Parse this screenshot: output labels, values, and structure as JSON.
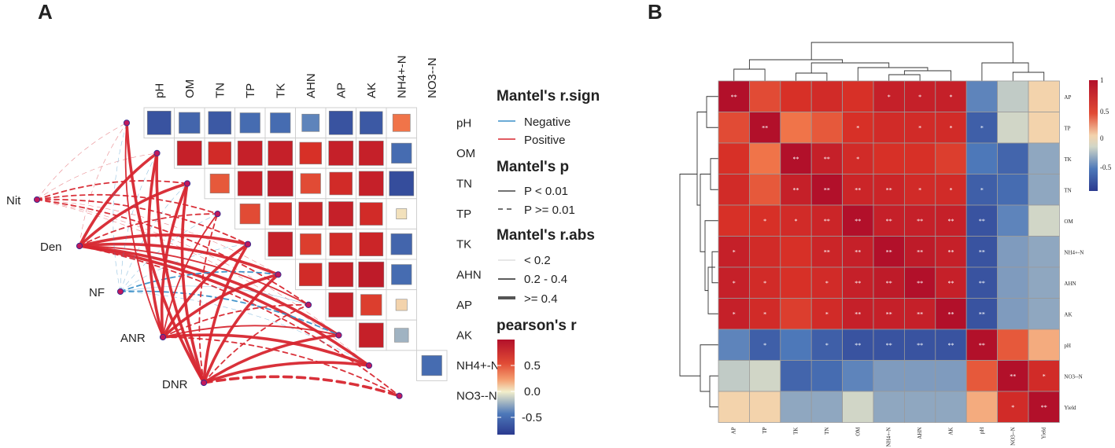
{
  "panel_a": {
    "label": "A",
    "chart_data": {
      "type": "heatmap",
      "variables": [
        "pH",
        "OM",
        "TN",
        "TP",
        "TK",
        "AHN",
        "AP",
        "AK",
        "NH4+-N",
        "NO3--N"
      ],
      "upper_triangle_r": [
        [
          -0.8,
          -0.65,
          -0.75,
          -0.6,
          -0.6,
          -0.45,
          -0.8,
          -0.75,
          0.45
        ],
        [
          0.85,
          0.75,
          0.85,
          0.85,
          0.7,
          0.85,
          0.85,
          -0.6
        ],
        [
          0.55,
          0.85,
          0.9,
          0.6,
          0.75,
          0.85,
          -0.85
        ],
        [
          0.6,
          0.75,
          0.8,
          0.85,
          0.75,
          0.05
        ],
        [
          0.85,
          0.65,
          0.75,
          0.8,
          -0.65
        ],
        [
          0.75,
          0.85,
          0.9,
          -0.6
        ],
        [
          0.85,
          0.65,
          0.1
        ],
        [
          0.85,
          -0.25
        ]
      ],
      "nodes": [
        "Nit",
        "Den",
        "NF",
        "ANR",
        "DNR"
      ],
      "links": [
        {
          "from": "Nit",
          "to": "pH",
          "sign": "Positive",
          "p": ">=0.01",
          "abs": "<0.2"
        },
        {
          "from": "Nit",
          "to": "OM",
          "sign": "Positive",
          "p": ">=0.01",
          "abs": "<0.2"
        },
        {
          "from": "Nit",
          "to": "TN",
          "sign": "Positive",
          "p": ">=0.01",
          "abs": "0.2-0.4"
        },
        {
          "from": "Nit",
          "to": "TP",
          "sign": "Positive",
          "p": ">=0.01",
          "abs": "0.2-0.4"
        },
        {
          "from": "Nit",
          "to": "TK",
          "sign": "Positive",
          "p": ">=0.01",
          "abs": "0.2-0.4"
        },
        {
          "from": "Nit",
          "to": "AHN",
          "sign": "Positive",
          "p": ">=0.01",
          "abs": "<0.2"
        },
        {
          "from": "Nit",
          "to": "AP",
          "sign": "Positive",
          "p": ">=0.01",
          "abs": "0.2-0.4"
        },
        {
          "from": "Nit",
          "to": "AK",
          "sign": "Positive",
          "p": ">=0.01",
          "abs": "<0.2"
        },
        {
          "from": "Nit",
          "to": "NH4+-N",
          "sign": "Positive",
          "p": ">=0.01",
          "abs": "<0.2"
        },
        {
          "from": "Den",
          "to": "pH",
          "sign": "Positive",
          "p": ">=0.01",
          "abs": "<0.2"
        },
        {
          "from": "Den",
          "to": "OM",
          "sign": "Positive",
          "p": "<0.01",
          "abs": ">=0.4"
        },
        {
          "from": "Den",
          "to": "TN",
          "sign": "Positive",
          "p": "<0.01",
          "abs": ">=0.4"
        },
        {
          "from": "Den",
          "to": "TP",
          "sign": "Positive",
          "p": ">=0.01",
          "abs": "0.2-0.4"
        },
        {
          "from": "Den",
          "to": "TK",
          "sign": "Positive",
          "p": "<0.01",
          "abs": ">=0.4"
        },
        {
          "from": "Den",
          "to": "AHN",
          "sign": "Positive",
          "p": "<0.01",
          "abs": ">=0.4"
        },
        {
          "from": "Den",
          "to": "AP",
          "sign": "Positive",
          "p": "<0.01",
          "abs": "0.2-0.4"
        },
        {
          "from": "Den",
          "to": "AK",
          "sign": "Positive",
          "p": "<0.01",
          "abs": ">=0.4"
        },
        {
          "from": "Den",
          "to": "NH4+-N",
          "sign": "Positive",
          "p": "<0.01",
          "abs": ">=0.4"
        },
        {
          "from": "Den",
          "to": "NO3--N",
          "sign": "Positive",
          "p": ">=0.01",
          "abs": "0.2-0.4"
        },
        {
          "from": "NF",
          "to": "pH",
          "sign": "Negative",
          "p": ">=0.01",
          "abs": "<0.2"
        },
        {
          "from": "NF",
          "to": "OM",
          "sign": "Negative",
          "p": ">=0.01",
          "abs": "<0.2"
        },
        {
          "from": "NF",
          "to": "TN",
          "sign": "Negative",
          "p": ">=0.01",
          "abs": "<0.2"
        },
        {
          "from": "NF",
          "to": "TP",
          "sign": "Negative",
          "p": ">=0.01",
          "abs": "<0.2"
        },
        {
          "from": "NF",
          "to": "TK",
          "sign": "Negative",
          "p": ">=0.01",
          "abs": "<0.2"
        },
        {
          "from": "NF",
          "to": "AHN",
          "sign": "Negative",
          "p": ">=0.01",
          "abs": "0.2-0.4"
        },
        {
          "from": "NF",
          "to": "AP",
          "sign": "Negative",
          "p": "<0.01",
          "abs": "<0.2"
        },
        {
          "from": "NF",
          "to": "AK",
          "sign": "Negative",
          "p": ">=0.01",
          "abs": "0.2-0.4"
        },
        {
          "from": "NF",
          "to": "NH4+-N",
          "sign": "Negative",
          "p": ">=0.01",
          "abs": "<0.2"
        },
        {
          "from": "ANR",
          "to": "pH",
          "sign": "Positive",
          "p": "<0.01",
          "abs": "0.2-0.4"
        },
        {
          "from": "ANR",
          "to": "OM",
          "sign": "Positive",
          "p": "<0.01",
          "abs": ">=0.4"
        },
        {
          "from": "ANR",
          "to": "TN",
          "sign": "Positive",
          "p": "<0.01",
          "abs": ">=0.4"
        },
        {
          "from": "ANR",
          "to": "TP",
          "sign": "Positive",
          "p": "<0.01",
          "abs": "0.2-0.4"
        },
        {
          "from": "ANR",
          "to": "TK",
          "sign": "Positive",
          "p": "<0.01",
          "abs": ">=0.4"
        },
        {
          "from": "ANR",
          "to": "AHN",
          "sign": "Positive",
          "p": "<0.01",
          "abs": ">=0.4"
        },
        {
          "from": "ANR",
          "to": "AP",
          "sign": "Positive",
          "p": ">=0.01",
          "abs": "0.2-0.4"
        },
        {
          "from": "ANR",
          "to": "AK",
          "sign": "Positive",
          "p": "<0.01",
          "abs": "0.2-0.4"
        },
        {
          "from": "ANR",
          "to": "NH4+-N",
          "sign": "Positive",
          "p": "<0.01",
          "abs": ">=0.4"
        },
        {
          "from": "ANR",
          "to": "NO3--N",
          "sign": "Positive",
          "p": ">=0.01",
          "abs": "0.2-0.4"
        },
        {
          "from": "DNR",
          "to": "pH",
          "sign": "Positive",
          "p": "<0.01",
          "abs": ">=0.4"
        },
        {
          "from": "DNR",
          "to": "OM",
          "sign": "Positive",
          "p": "<0.01",
          "abs": ">=0.4"
        },
        {
          "from": "DNR",
          "to": "TN",
          "sign": "Positive",
          "p": "<0.01",
          "abs": ">=0.4"
        },
        {
          "from": "DNR",
          "to": "TP",
          "sign": "Positive",
          "p": ">=0.01",
          "abs": "0.2-0.4"
        },
        {
          "from": "DNR",
          "to": "TK",
          "sign": "Positive",
          "p": "<0.01",
          "abs": ">=0.4"
        },
        {
          "from": "DNR",
          "to": "AHN",
          "sign": "Positive",
          "p": "<0.01",
          "abs": ">=0.4"
        },
        {
          "from": "DNR",
          "to": "AP",
          "sign": "Positive",
          "p": ">=0.01",
          "abs": "0.2-0.4"
        },
        {
          "from": "DNR",
          "to": "AK",
          "sign": "Positive",
          "p": "<0.01",
          "abs": ">=0.4"
        },
        {
          "from": "DNR",
          "to": "NH4+-N",
          "sign": "Positive",
          "p": "<0.01",
          "abs": ">=0.4"
        },
        {
          "from": "DNR",
          "to": "NO3--N",
          "sign": "Positive",
          "p": ">=0.01",
          "abs": ">=0.4"
        }
      ],
      "legend": {
        "sign_title": "Mantel's r.sign",
        "sign_items": [
          {
            "label": "Negative",
            "color": "#3a8fc8"
          },
          {
            "label": "Positive",
            "color": "#d7262f"
          }
        ],
        "p_title": "Mantel's p",
        "p_items": [
          "P < 0.01",
          "P >= 0.01"
        ],
        "abs_title": "Mantel's r.abs",
        "abs_items": [
          "< 0.2",
          "0.2 - 0.4",
          ">= 0.4"
        ],
        "r_title": "pearson's r",
        "r_ticks": [
          "0.5",
          "0.0",
          "-0.5"
        ]
      }
    }
  },
  "panel_b": {
    "label": "B",
    "chart_data": {
      "type": "heatmap",
      "variables": [
        "AP",
        "TP",
        "TK",
        "TN",
        "OM",
        "NH4+-N",
        "AHN",
        "AK",
        "pH",
        "NO3--N",
        "Yield"
      ],
      "r": [
        [
          1.0,
          0.6,
          0.7,
          0.75,
          0.7,
          0.85,
          0.85,
          0.85,
          -0.45,
          -0.15,
          0.1
        ],
        [
          0.6,
          1.0,
          0.45,
          0.55,
          0.7,
          0.75,
          0.75,
          0.75,
          -0.7,
          -0.1,
          0.1
        ],
        [
          0.7,
          0.45,
          1.0,
          0.85,
          0.75,
          0.7,
          0.7,
          0.65,
          -0.5,
          -0.65,
          -0.3
        ],
        [
          0.75,
          0.55,
          0.85,
          1.0,
          0.8,
          0.8,
          0.75,
          0.75,
          -0.7,
          -0.6,
          -0.3
        ],
        [
          0.7,
          0.7,
          0.75,
          0.8,
          1.0,
          0.85,
          0.85,
          0.85,
          -0.8,
          -0.45,
          -0.1
        ],
        [
          0.85,
          0.75,
          0.7,
          0.8,
          0.85,
          1.0,
          0.9,
          0.85,
          -0.8,
          -0.35,
          -0.3
        ],
        [
          0.85,
          0.75,
          0.7,
          0.75,
          0.85,
          0.9,
          1.0,
          0.85,
          -0.8,
          -0.35,
          -0.3
        ],
        [
          0.85,
          0.75,
          0.65,
          0.75,
          0.85,
          0.85,
          0.85,
          1.0,
          -0.8,
          -0.35,
          -0.3
        ],
        [
          -0.45,
          -0.7,
          -0.5,
          -0.7,
          -0.8,
          -0.8,
          -0.8,
          -0.8,
          1.0,
          0.55,
          0.25
        ],
        [
          -0.15,
          -0.1,
          -0.65,
          -0.6,
          -0.45,
          -0.35,
          -0.35,
          -0.35,
          0.55,
          1.0,
          0.75
        ],
        [
          0.1,
          0.1,
          -0.3,
          -0.3,
          -0.1,
          -0.3,
          -0.3,
          -0.3,
          0.25,
          0.75,
          1.0
        ]
      ],
      "sig": [
        [
          "**",
          "",
          "",
          "",
          "",
          "*",
          "*",
          "*",
          "",
          "",
          ""
        ],
        [
          "",
          "**",
          "",
          "",
          "*",
          "",
          "*",
          "*",
          "*",
          "",
          ""
        ],
        [
          "",
          "",
          "**",
          "**",
          "*",
          "",
          "",
          "",
          "",
          "",
          ""
        ],
        [
          "",
          "",
          "**",
          "**",
          "**",
          "**",
          "*",
          "*",
          "*",
          "",
          ""
        ],
        [
          "",
          "*",
          "*",
          "**",
          "**",
          "**",
          "**",
          "**",
          "**",
          "",
          ""
        ],
        [
          "*",
          "",
          "",
          "**",
          "**",
          "**",
          "**",
          "**",
          "**",
          "",
          ""
        ],
        [
          "*",
          "*",
          "",
          "*",
          "**",
          "**",
          "**",
          "**",
          "**",
          "",
          ""
        ],
        [
          "*",
          "*",
          "",
          "*",
          "**",
          "**",
          "**",
          "**",
          "**",
          "",
          ""
        ],
        [
          "",
          "*",
          "",
          "*",
          "**",
          "**",
          "**",
          "**",
          "**",
          "",
          ""
        ],
        [
          "",
          "",
          "",
          "",
          "",
          "",
          "",
          "",
          "",
          "**",
          "*"
        ],
        [
          "",
          "",
          "",
          "",
          "",
          "",
          "",
          "",
          "",
          "*",
          "**"
        ]
      ],
      "colorbar_ticks": [
        "1",
        "0.5",
        "0",
        "-0.5"
      ]
    }
  },
  "colors": {
    "low": "#2b3a8f",
    "mid": "#f2eecb",
    "high": "#b2102a"
  }
}
